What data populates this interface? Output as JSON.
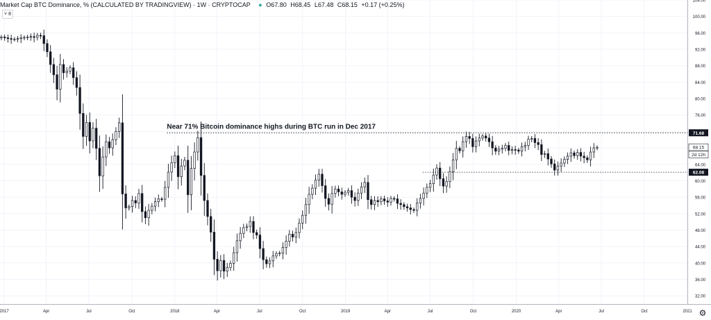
{
  "header": {
    "title": "Market Cap BTC Dominance, % (CALCULATED BY TRADINGVIEW) · 1W · CRYPTOCAP",
    "open": "O67.80",
    "high": "H68.45",
    "low": "L67.48",
    "close": "C68.15",
    "change": "+0.17 (+0.25%)",
    "collapse_glyph": "˅ 8"
  },
  "colors": {
    "candle_body": "#ffffff",
    "candle_outline": "#131722",
    "bearish_fill": "#131722",
    "grid": "#f0f3fa",
    "axis_text": "#131722",
    "status_dot": "#26a69a"
  },
  "chart_data": {
    "type": "candlestick",
    "title": "Market Cap BTC Dominance, % (CALCULATED BY TRADINGVIEW)",
    "interval": "1W",
    "xlabel": "",
    "ylabel": "",
    "ylim": [
      30,
      104
    ],
    "grid": true,
    "y_ticks": [
      "104.00",
      "100.00",
      "96.00",
      "92.00",
      "88.00",
      "84.00",
      "80.00",
      "76.00",
      "72.00",
      "68.00",
      "64.00",
      "60.00",
      "56.00",
      "52.00",
      "48.00",
      "44.00",
      "40.00",
      "36.00",
      "32.00"
    ],
    "x_ticks": [
      "2017",
      "Apr",
      "Jul",
      "Oct",
      "2018",
      "Apr",
      "Jul",
      "Oct",
      "2019",
      "Apr",
      "Jul",
      "Oct",
      "2020",
      "Apr",
      "Jul",
      "Oct",
      "2021"
    ],
    "x_tick_dates": [
      "2017-01-01",
      "2017-04-01",
      "2017-07-01",
      "2017-10-01",
      "2018-01-01",
      "2018-04-01",
      "2018-07-01",
      "2018-10-01",
      "2019-01-01",
      "2019-04-01",
      "2019-07-01",
      "2019-10-01",
      "2020-01-01",
      "2020-04-01",
      "2020-07-01",
      "2020-10-01",
      "2021-01-01"
    ],
    "x_range": [
      "2017-01-01",
      "2021-01-01"
    ],
    "horizontal_lines": [
      {
        "value": 71.68,
        "label": "71.68",
        "style": "dotted"
      },
      {
        "value": 62.08,
        "label": "62.08",
        "style": "dotted"
      }
    ],
    "price_labels": [
      {
        "value": 68.15,
        "label": "68.15"
      },
      {
        "value": 66.4,
        "label": "2d 12h"
      }
    ],
    "annotation": {
      "text": "Near 71% Bitcoin dominance highs during BTC run in Dec 2017",
      "x": "2017-12-15",
      "y": 73.0
    },
    "weekly_close": [
      95.0,
      94.8,
      94.6,
      94.5,
      94.5,
      94.6,
      94.8,
      94.9,
      95.0,
      95.1,
      94.9,
      95.4,
      95.3,
      93.4,
      91.4,
      88.3,
      85.8,
      82.3,
      88.3,
      86.3,
      86.7,
      87.5,
      85.1,
      82.7,
      76.4,
      70.8,
      74.2,
      69.7,
      72.8,
      67.9,
      61.2,
      65.8,
      69.5,
      68.0,
      70.0,
      72.0,
      74.1,
      56.8,
      53.4,
      53.7,
      55.2,
      54.6,
      56.9,
      52.5,
      51.0,
      52.8,
      53.8,
      54.9,
      55.6,
      55.5,
      58.4,
      62.1,
      64.4,
      66.1,
      61.0,
      63.6,
      65.0,
      56.6,
      63.0,
      67.0,
      70.5,
      61.3,
      55.2,
      51.3,
      47.5,
      40.9,
      38.1,
      40.6,
      38.0,
      38.9,
      39.9,
      42.5,
      45.4,
      47.2,
      48.6,
      48.9,
      50.1,
      47.4,
      46.8,
      43.5,
      40.8,
      39.8,
      40.5,
      41.7,
      42.3,
      42.4,
      43.8,
      45.3,
      47.0,
      46.3,
      47.4,
      49.7,
      51.6,
      54.2,
      56.7,
      58.2,
      60.2,
      61.6,
      58.8,
      55.7,
      54.3,
      56.9,
      58.0,
      57.3,
      56.7,
      57.2,
      57.6,
      56.0,
      55.2,
      57.0,
      58.5,
      59.6,
      55.4,
      54.2,
      55.2,
      54.9,
      55.6,
      55.1,
      54.8,
      55.7,
      55.6,
      54.5,
      54.2,
      53.7,
      53.4,
      53.0,
      52.8,
      54.6,
      55.7,
      57.0,
      58.4,
      59.3,
      61.4,
      63.1,
      60.5,
      58.7,
      59.8,
      62.2,
      65.1,
      67.9,
      67.3,
      69.5,
      70.8,
      70.3,
      68.3,
      69.7,
      70.4,
      70.9,
      70.4,
      69.5,
      68.0,
      67.2,
      67.7,
      67.9,
      68.6,
      67.4,
      67.6,
      67.5,
      67.2,
      68.3,
      68.6,
      70.1,
      70.3,
      69.3,
      68.8,
      66.4,
      66.6,
      65.3,
      64.1,
      62.6,
      63.6,
      64.3,
      65.2,
      66.0,
      66.8,
      66.1,
      66.9,
      66.0,
      65.6,
      65.1,
      67.0,
      68.0,
      68.15
    ]
  }
}
